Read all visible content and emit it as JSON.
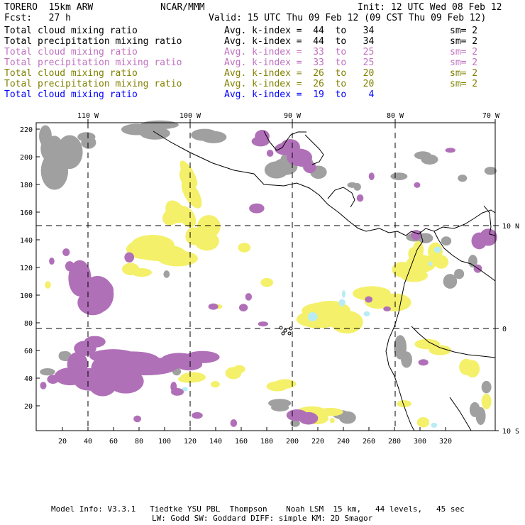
{
  "header": {
    "model": "TORERO  15km ARW",
    "center": "NCAR/MMM",
    "init": "Init: 12 UTC Wed 08 Feb 12",
    "fcst": "Fcst:   27 h",
    "valid": "Valid: 15 UTC Thu 09 Feb 12 (09 CST Thu 09 Feb 12)"
  },
  "legend": [
    {
      "field": "Total cloud mixing ratio",
      "kindex": "Avg. k-index =  44  to   34",
      "sm": "sm= 2",
      "color": "#000000"
    },
    {
      "field": "Total precipitation mixing ratio",
      "kindex": "Avg. k-index =  44  to   34",
      "sm": "sm= 2",
      "color": "#000000"
    },
    {
      "field": "Total cloud mixing ratio",
      "kindex": "Avg. k-index =  33  to   25",
      "sm": "sm= 2",
      "color": "#c070c0"
    },
    {
      "field": "Total precipitation mixing ratio",
      "kindex": "Avg. k-index =  33  to   25",
      "sm": "sm= 2",
      "color": "#c070c0"
    },
    {
      "field": "Total cloud mixing ratio",
      "kindex": "Avg. k-index =  26  to   20",
      "sm": "sm= 2",
      "color": "#808000"
    },
    {
      "field": "Total precipitation mixing ratio",
      "kindex": "Avg. k-index =  26  to   20",
      "sm": "sm= 2",
      "color": "#808000"
    },
    {
      "field": "Total cloud mixing ratio",
      "kindex": "Avg. k-index =  19  to    4",
      "sm": "",
      "color": "#0000ff"
    }
  ],
  "top_axis": [
    "110 W",
    "100 W",
    "90 W",
    "80 W",
    "70 W"
  ],
  "right_axis": [
    "10 N",
    "0",
    "10 S"
  ],
  "left_axis": [
    "220",
    "200",
    "180",
    "160",
    "140",
    "120",
    "100",
    "80",
    "60",
    "40",
    "20"
  ],
  "bottom_axis": [
    "20",
    "40",
    "60",
    "80",
    "100",
    "120",
    "140",
    "160",
    "180",
    "200",
    "220",
    "240",
    "260",
    "280",
    "300",
    "320"
  ],
  "footer": {
    "line1": "Model Info: V3.3.1   Tiedtke YSU PBL  Thompson    Noah LSM  15 km,   44 levels,   45 sec",
    "line2": "LW: Godd SW: Goddard DIFF: simple KM: 2D Smagor"
  },
  "colors": {
    "gray": "#a0a0a0",
    "purple": "#b070b8",
    "yellow": "#f4f06a",
    "cyan": "#b8ecf4",
    "coast": "#000000"
  }
}
